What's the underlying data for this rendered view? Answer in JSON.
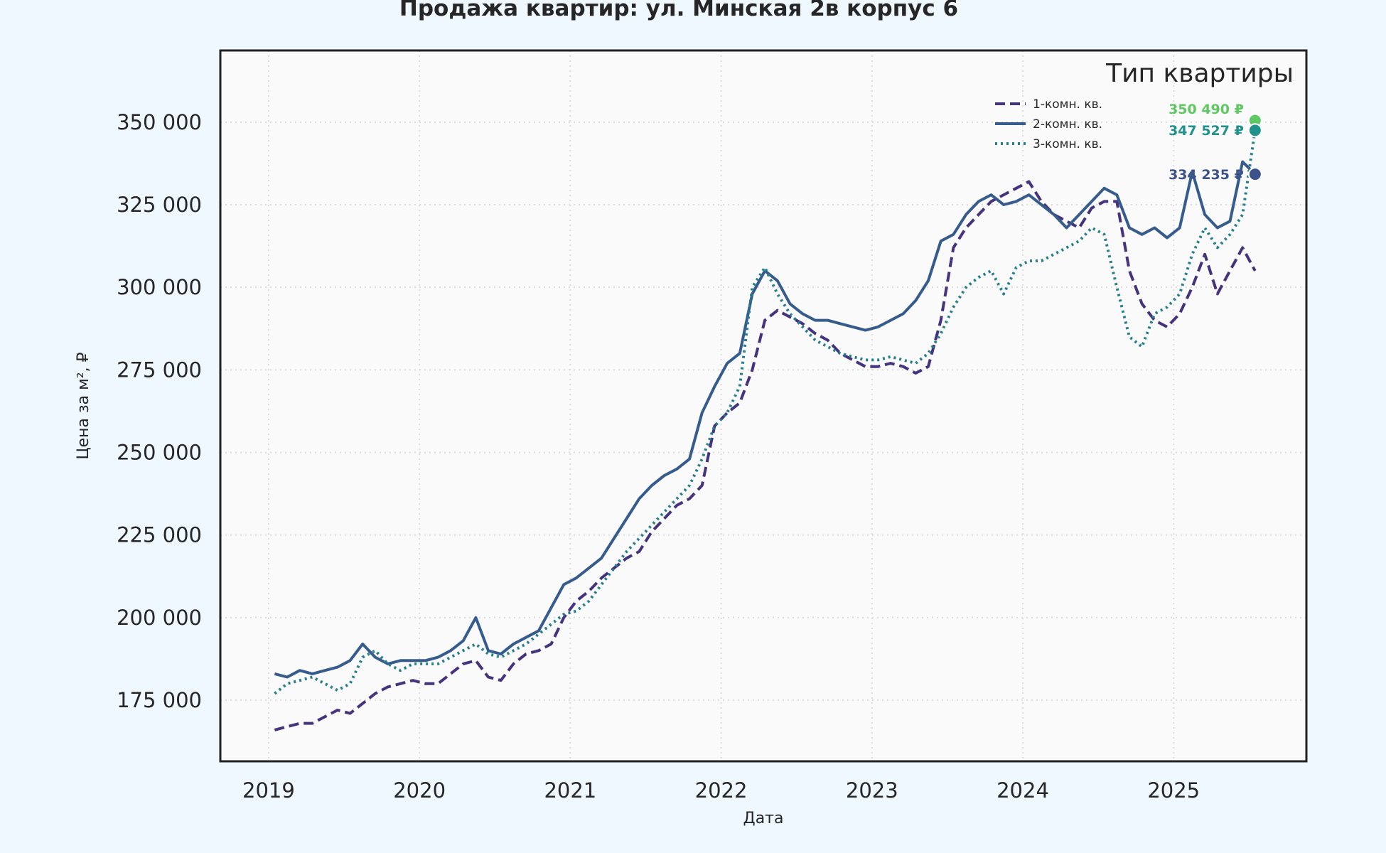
{
  "chart_data": {
    "type": "line",
    "title": "Продажа квартир: ул. Минская 2в корпус 6",
    "xlabel": "Дата",
    "ylabel": "Цена за м², ₽",
    "xlim": [
      2018.68,
      2025.88
    ],
    "ylim": [
      156500,
      371700
    ],
    "x_ticks": [
      "2019",
      "2020",
      "2021",
      "2022",
      "2023",
      "2024",
      "2025"
    ],
    "y_ticks": [
      175000,
      200000,
      225000,
      250000,
      275000,
      300000,
      325000,
      350000
    ],
    "y_tick_labels": [
      "175 000",
      "200 000",
      "225 000",
      "250 000",
      "275 000",
      "300 000",
      "325 000",
      "350 000"
    ],
    "grid": true,
    "legend": {
      "title": "Тип квартиры",
      "placement": "top-right"
    },
    "x_start": "2019-01",
    "x_step": "month",
    "series": [
      {
        "name": "1-комн. кв.",
        "color": "#46337e",
        "style": "dashed",
        "values": [
          166000,
          167000,
          168000,
          168000,
          170000,
          172000,
          171000,
          174000,
          177000,
          179000,
          180000,
          181000,
          180000,
          180000,
          183000,
          186000,
          187000,
          182000,
          181000,
          186000,
          189000,
          190000,
          192000,
          200000,
          205000,
          208000,
          212000,
          215000,
          218000,
          220000,
          226000,
          230000,
          234000,
          236000,
          240000,
          258000,
          262000,
          265000,
          275000,
          290000,
          293000,
          291000,
          289000,
          286000,
          284000,
          280000,
          278000,
          276000,
          276000,
          277000,
          276000,
          274000,
          276000,
          290000,
          312000,
          318000,
          322000,
          326000,
          328000,
          330000,
          332000,
          326000,
          322000,
          320000,
          318000,
          324000,
          326000,
          326000,
          305000,
          295000,
          290000,
          288000,
          292000,
          300000,
          310000,
          298000,
          305000,
          312000,
          305000
        ]
      },
      {
        "name": "2-комн. кв.",
        "color": "#365c8d",
        "style": "solid",
        "values": [
          183000,
          182000,
          184000,
          183000,
          184000,
          185000,
          187000,
          192000,
          188000,
          186000,
          187000,
          187000,
          187000,
          188000,
          190000,
          193000,
          200000,
          190000,
          189000,
          192000,
          194000,
          196000,
          203000,
          210000,
          212000,
          215000,
          218000,
          224000,
          230000,
          236000,
          240000,
          243000,
          245000,
          248000,
          262000,
          270000,
          277000,
          280000,
          298000,
          305000,
          302000,
          295000,
          292000,
          290000,
          290000,
          289000,
          288000,
          287000,
          288000,
          290000,
          292000,
          296000,
          302000,
          314000,
          316000,
          322000,
          326000,
          328000,
          325000,
          326000,
          328000,
          325000,
          322000,
          318000,
          322000,
          326000,
          330000,
          328000,
          318000,
          316000,
          318000,
          315000,
          318000,
          335000,
          322000,
          318000,
          320000,
          338000,
          334235
        ]
      },
      {
        "name": "3-комн. кв.",
        "color": "#277f8e",
        "style": "dotted",
        "values": [
          177000,
          180000,
          181000,
          182000,
          180000,
          178000,
          180000,
          188000,
          190000,
          186000,
          184000,
          186000,
          186000,
          186000,
          188000,
          190000,
          192000,
          189000,
          188000,
          190000,
          192000,
          195000,
          198000,
          201000,
          202000,
          205000,
          210000,
          215000,
          220000,
          224000,
          228000,
          232000,
          236000,
          240000,
          248000,
          258000,
          262000,
          270000,
          300000,
          306000,
          298000,
          292000,
          288000,
          284000,
          282000,
          280000,
          279000,
          278000,
          278000,
          279000,
          278000,
          277000,
          280000,
          286000,
          294000,
          300000,
          303000,
          305000,
          298000,
          306000,
          308000,
          308000,
          310000,
          312000,
          314000,
          318000,
          316000,
          300000,
          285000,
          282000,
          292000,
          294000,
          298000,
          310000,
          318000,
          312000,
          316000,
          322000,
          347527
        ]
      }
    ],
    "end_markers": [
      {
        "date": "2025-07",
        "value": 350490,
        "label": "350 490 ₽",
        "color": "#5ec962"
      },
      {
        "date": "2025-07",
        "value": 347527,
        "label": "347 527 ₽",
        "color": "#21918c"
      },
      {
        "date": "2025-07",
        "value": 334235,
        "label": "334 235 ₽",
        "color": "#3b528b"
      }
    ]
  }
}
